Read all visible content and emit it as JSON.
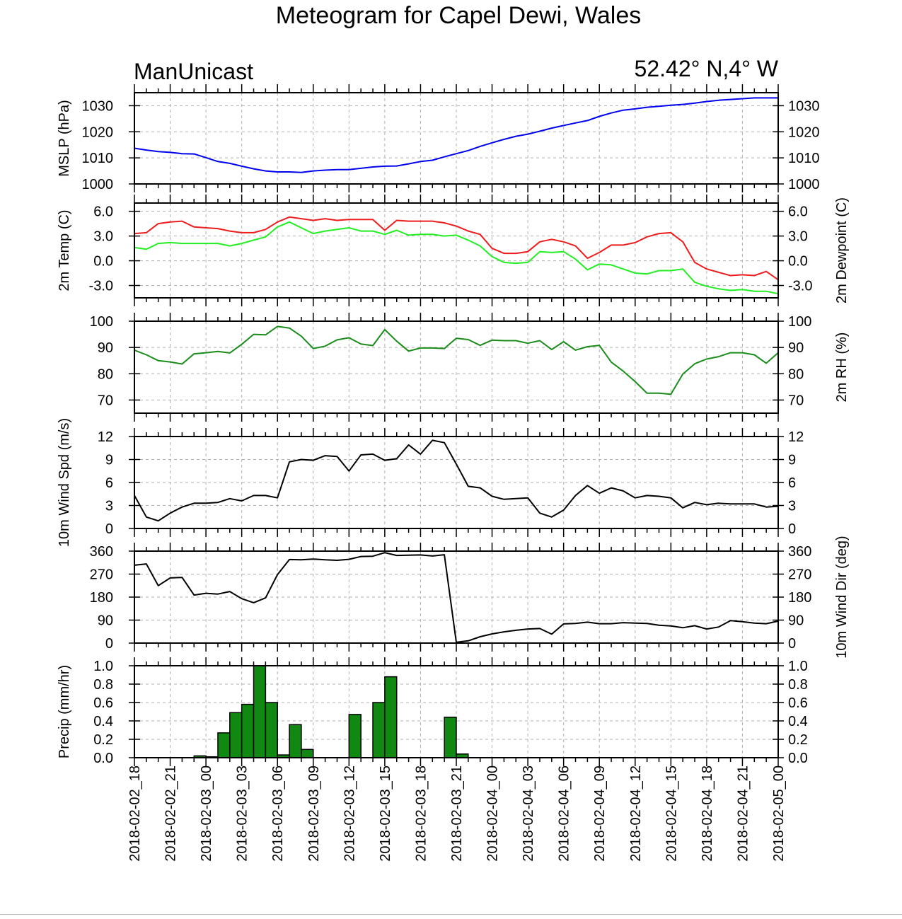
{
  "title": "Meteogram for Capel Dewi, Wales",
  "model": "ManUnicast",
  "location": "52.42° N,4° W",
  "colors": {
    "mslp": "#0000ee",
    "temp": "#ee1c1c",
    "dewpoint": "#22ee22",
    "rh": "#1a8c1a",
    "wind": "#000000",
    "precip_fill": "#118811",
    "grid": "#b0b0b0"
  },
  "chart_data": [
    {
      "type": "line",
      "ylabel": "MSLP (hPa)",
      "ylim": [
        1000,
        1035
      ],
      "yticks": [
        "1000",
        "1010",
        "1020",
        "1030"
      ],
      "grid": true,
      "x": [
        0,
        1,
        2,
        3,
        4,
        5,
        6,
        7,
        8,
        9,
        10,
        11,
        12,
        13,
        14,
        15,
        16,
        17,
        18,
        19,
        20,
        21,
        22,
        23,
        24,
        25,
        26,
        27,
        28,
        29,
        30,
        31,
        32,
        33,
        34,
        35,
        36,
        37,
        38,
        39,
        40,
        41,
        42,
        43,
        44,
        45,
        46,
        47,
        48,
        49,
        50,
        51,
        52,
        53,
        54
      ],
      "series": [
        {
          "values": [
            1013.7,
            1013.0,
            1012.4,
            1012.1,
            1011.6,
            1011.5,
            1010.1,
            1008.6,
            1007.9,
            1006.8,
            1005.8,
            1005.0,
            1004.6,
            1004.6,
            1004.4,
            1005.0,
            1005.3,
            1005.5,
            1005.5,
            1006.0,
            1006.5,
            1006.8,
            1006.9,
            1007.7,
            1008.6,
            1009.1,
            1010.4,
            1011.6,
            1012.8,
            1014.4,
            1015.8,
            1017.1,
            1018.3,
            1019.1,
            1020.2,
            1021.4,
            1022.4,
            1023.4,
            1024.3,
            1025.9,
            1027.2,
            1028.3,
            1028.8,
            1029.4,
            1029.8,
            1030.2,
            1030.5,
            1031.0,
            1031.6,
            1032.1,
            1032.4,
            1032.7,
            1033.0,
            1033.0,
            1033.0
          ]
        }
      ]
    },
    {
      "type": "line",
      "ylabel": "2m Temp (C)",
      "ylabel_right": "2m Dewpoint (C)",
      "ylim": [
        -4.5,
        7.0
      ],
      "yticks": [
        "-3.0",
        "0.0",
        "3.0",
        "6.0"
      ],
      "grid": true,
      "x": [
        0,
        1,
        2,
        3,
        4,
        5,
        6,
        7,
        8,
        9,
        10,
        11,
        12,
        13,
        14,
        15,
        16,
        17,
        18,
        19,
        20,
        21,
        22,
        23,
        24,
        25,
        26,
        27,
        28,
        29,
        30,
        31,
        32,
        33,
        34,
        35,
        36,
        37,
        38,
        39,
        40,
        41,
        42,
        43,
        44,
        45,
        46,
        47,
        48,
        49,
        50,
        51,
        52,
        53,
        54
      ],
      "series": [
        {
          "values": [
            3.3,
            3.4,
            4.5,
            4.7,
            4.8,
            4.1,
            4.0,
            3.9,
            3.6,
            3.4,
            3.4,
            3.8,
            4.7,
            5.3,
            5.1,
            4.9,
            5.1,
            4.9,
            5.0,
            5.0,
            5.0,
            3.7,
            4.9,
            4.8,
            4.8,
            4.8,
            4.6,
            4.2,
            3.6,
            3.2,
            1.5,
            0.9,
            0.9,
            1.1,
            2.3,
            2.6,
            2.3,
            1.8,
            0.3,
            1.0,
            1.9,
            1.9,
            2.2,
            2.9,
            3.3,
            3.4,
            2.3,
            -0.2,
            -1.0,
            -1.4,
            -1.8,
            -1.7,
            -1.8,
            -1.3,
            -2.3
          ]
        },
        {
          "values": [
            1.6,
            1.4,
            2.1,
            2.2,
            2.1,
            2.1,
            2.1,
            2.1,
            1.8,
            2.1,
            2.5,
            2.9,
            4.1,
            4.7,
            4.0,
            3.3,
            3.6,
            3.8,
            4.0,
            3.6,
            3.6,
            3.2,
            3.7,
            3.1,
            3.2,
            3.2,
            3.0,
            3.1,
            2.5,
            1.8,
            0.5,
            -0.2,
            -0.3,
            -0.2,
            1.1,
            1.0,
            1.1,
            0.2,
            -1.1,
            -0.4,
            -0.5,
            -1.0,
            -1.5,
            -1.6,
            -1.2,
            -1.2,
            -1.0,
            -2.6,
            -3.1,
            -3.4,
            -3.6,
            -3.5,
            -3.7,
            -3.7,
            -4.0
          ]
        }
      ]
    },
    {
      "type": "line",
      "ylabel_right": "2m RH (%)",
      "ylim": [
        65,
        100
      ],
      "yticks": [
        "70",
        "80",
        "90",
        "100"
      ],
      "grid": true,
      "x": [
        0,
        1,
        2,
        3,
        4,
        5,
        6,
        7,
        8,
        9,
        10,
        11,
        12,
        13,
        14,
        15,
        16,
        17,
        18,
        19,
        20,
        21,
        22,
        23,
        24,
        25,
        26,
        27,
        28,
        29,
        30,
        31,
        32,
        33,
        34,
        35,
        36,
        37,
        38,
        39,
        40,
        41,
        42,
        43,
        44,
        45,
        46,
        47,
        48,
        49,
        50,
        51,
        52,
        53,
        54
      ],
      "series": [
        {
          "values": [
            89.0,
            87.2,
            85.0,
            84.5,
            83.7,
            87.6,
            88.0,
            88.5,
            87.9,
            91.2,
            95.0,
            94.8,
            98.0,
            97.4,
            94.3,
            89.6,
            90.5,
            92.9,
            93.7,
            91.3,
            90.7,
            96.8,
            92.4,
            88.6,
            89.8,
            89.8,
            89.6,
            93.5,
            93.0,
            90.8,
            92.8,
            92.6,
            92.6,
            91.6,
            92.6,
            89.2,
            92.2,
            89.0,
            90.3,
            90.8,
            84.4,
            81.0,
            77.0,
            72.6,
            72.6,
            72.2,
            79.9,
            83.8,
            85.6,
            86.5,
            88.0,
            88.0,
            87.2,
            84.0,
            88.0
          ]
        }
      ]
    },
    {
      "type": "line",
      "ylabel": "10m Wind Spd (m/s)",
      "ylim": [
        0,
        12
      ],
      "yticks": [
        "0",
        "3",
        "6",
        "9",
        "12"
      ],
      "grid": true,
      "x": [
        0,
        1,
        2,
        3,
        4,
        5,
        6,
        7,
        8,
        9,
        10,
        11,
        12,
        13,
        14,
        15,
        16,
        17,
        18,
        19,
        20,
        21,
        22,
        23,
        24,
        25,
        26,
        27,
        28,
        29,
        30,
        31,
        32,
        33,
        34,
        35,
        36,
        37,
        38,
        39,
        40,
        41,
        42,
        43,
        44,
        45,
        46,
        47,
        48,
        49,
        50,
        51,
        52,
        53,
        54
      ],
      "series": [
        {
          "values": [
            4.3,
            1.5,
            1.0,
            2.0,
            2.8,
            3.3,
            3.3,
            3.4,
            3.9,
            3.6,
            4.3,
            4.3,
            4.0,
            8.7,
            9.0,
            8.9,
            9.5,
            9.4,
            7.5,
            9.6,
            9.7,
            8.9,
            9.1,
            10.9,
            9.7,
            11.5,
            11.2,
            8.4,
            5.5,
            5.3,
            4.2,
            3.8,
            3.9,
            4.0,
            2.0,
            1.5,
            2.4,
            4.3,
            5.6,
            4.6,
            5.3,
            4.9,
            4.0,
            4.3,
            4.2,
            4.0,
            2.7,
            3.4,
            3.1,
            3.3,
            3.2,
            3.2,
            3.2,
            2.8,
            2.9
          ]
        }
      ]
    },
    {
      "type": "line",
      "ylabel_right": "10m Wind Dir (deg)",
      "ylim": [
        0,
        360
      ],
      "yticks": [
        "0",
        "90",
        "180",
        "270",
        "360"
      ],
      "grid": true,
      "x": [
        0,
        1,
        2,
        3,
        4,
        5,
        6,
        7,
        8,
        9,
        10,
        11,
        12,
        13,
        14,
        15,
        16,
        17,
        18,
        19,
        20,
        21,
        22,
        23,
        24,
        25,
        26,
        27,
        28,
        29,
        30,
        31,
        32,
        33,
        34,
        35,
        36,
        37,
        38,
        39,
        40,
        41,
        42,
        43,
        44,
        45,
        46,
        47,
        48,
        49,
        50,
        51,
        52,
        53,
        54
      ],
      "series": [
        {
          "values": [
            305,
            310,
            225,
            255,
            257,
            188,
            195,
            192,
            202,
            174,
            158,
            177,
            268,
            327,
            326,
            329,
            326,
            324,
            328,
            339,
            340,
            354,
            343,
            344,
            345,
            341,
            346,
            3,
            9,
            25,
            36,
            44,
            50,
            55,
            57,
            35,
            75,
            77,
            82,
            76,
            76,
            80,
            78,
            77,
            70,
            67,
            60,
            68,
            55,
            63,
            88,
            84,
            78,
            76,
            86
          ]
        }
      ]
    },
    {
      "type": "bar",
      "ylabel": "Precip (mm/hr)",
      "ylim": [
        0,
        1.0
      ],
      "yticks": [
        "0.0",
        "0.2",
        "0.4",
        "0.6",
        "0.8",
        "1.0"
      ],
      "grid": true,
      "x": [
        0,
        1,
        2,
        3,
        4,
        5,
        6,
        7,
        8,
        9,
        10,
        11,
        12,
        13,
        14,
        15,
        16,
        17,
        18,
        19,
        20,
        21,
        22,
        23,
        24,
        25,
        26,
        27,
        28,
        29,
        30,
        31,
        32,
        33,
        34,
        35,
        36,
        37,
        38,
        39,
        40,
        41,
        42,
        43,
        44,
        45,
        46,
        47,
        48,
        49,
        50,
        51,
        52,
        53,
        54
      ],
      "values": [
        0,
        0,
        0,
        0,
        0,
        0.02,
        0.01,
        0.27,
        0.49,
        0.58,
        1.0,
        0.6,
        0.03,
        0.36,
        0.09,
        0,
        0,
        0,
        0.47,
        0,
        0.6,
        0.88,
        0,
        0,
        0,
        0,
        0.44,
        0.04,
        0,
        0,
        0,
        0,
        0,
        0,
        0,
        0,
        0,
        0,
        0,
        0,
        0,
        0,
        0,
        0,
        0,
        0,
        0,
        0,
        0,
        0,
        0,
        0,
        0,
        0,
        0
      ]
    }
  ],
  "x_axis": {
    "ticks": [
      {
        "x": 0,
        "label": "2018-02-02_18"
      },
      {
        "x": 3,
        "label": "2018-02-02_21"
      },
      {
        "x": 6,
        "label": "2018-02-03_00"
      },
      {
        "x": 9,
        "label": "2018-02-03_03"
      },
      {
        "x": 12,
        "label": "2018-02-03_06"
      },
      {
        "x": 15,
        "label": "2018-02-03_09"
      },
      {
        "x": 18,
        "label": "2018-02-03_12"
      },
      {
        "x": 21,
        "label": "2018-02-03_15"
      },
      {
        "x": 24,
        "label": "2018-02-03_18"
      },
      {
        "x": 27,
        "label": "2018-02-03_21"
      },
      {
        "x": 30,
        "label": "2018-02-04_00"
      },
      {
        "x": 33,
        "label": "2018-02-04_03"
      },
      {
        "x": 36,
        "label": "2018-02-04_06"
      },
      {
        "x": 39,
        "label": "2018-02-04_09"
      },
      {
        "x": 42,
        "label": "2018-02-04_12"
      },
      {
        "x": 45,
        "label": "2018-02-04_15"
      },
      {
        "x": 48,
        "label": "2018-02-04_18"
      },
      {
        "x": 51,
        "label": "2018-02-04_21"
      },
      {
        "x": 54,
        "label": "2018-02-05_00"
      }
    ]
  }
}
